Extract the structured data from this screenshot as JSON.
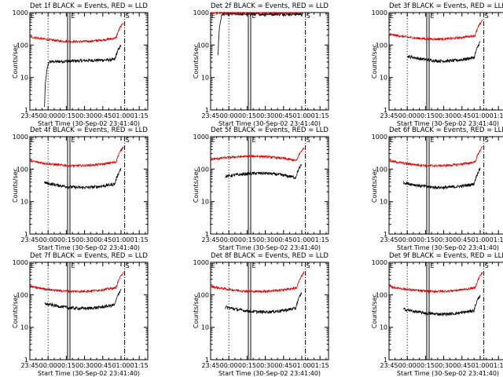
{
  "figure": {
    "background": "#ffffff",
    "colors": {
      "events": "#000000",
      "lld": "#dd0000",
      "axes": "#000000"
    }
  },
  "chart_data": [
    {
      "type": "line",
      "title": "Det 1f BLACK = Events, RED = LLD",
      "xlabel": "Start Time (30-Sep-02 23:41:40)",
      "ylabel": "Counts/sec",
      "xticks": [
        "23:45",
        "00:00",
        "00:15",
        "00:30",
        "00:45",
        "01:00",
        "01:15"
      ],
      "yticks": [
        "1",
        "10",
        "100",
        "1000"
      ],
      "yscale": "log",
      "ylim": [
        1,
        1000
      ],
      "markers": {
        "dotted": "00:00",
        "double": "00:17",
        "dashdot": "01:03",
        "letters": [
          "E",
          "S"
        ]
      },
      "series": [
        {
          "name": "Events",
          "color": "#000000",
          "start": "23:57",
          "end": "01:00",
          "shape": "onset",
          "level": 30
        },
        {
          "name": "LLD",
          "color": "#dd0000",
          "start": "23:45",
          "end": "01:02",
          "shape": "smile",
          "level": 150
        }
      ]
    },
    {
      "type": "line",
      "title": "Det 2f BLACK = Events, RED = LLD",
      "xlabel": "Start Time (30-Sep-02 23:41:40)",
      "ylabel": "Counts/sec",
      "xticks": [
        "23:45",
        "00:00",
        "00:15",
        "00:30",
        "00:45",
        "01:00",
        "01:15"
      ],
      "yticks": [
        "1",
        "10",
        "100",
        "1000"
      ],
      "yscale": "log",
      "ylim": [
        1,
        1000
      ],
      "markers": {
        "dotted": "00:00",
        "double": "00:17",
        "dashdot": "01:03",
        "letters": [
          "E",
          "S"
        ]
      },
      "series": [
        {
          "name": "Events",
          "color": "#000000",
          "start": "23:51",
          "end": "01:01",
          "shape": "flatonset",
          "level": 900
        },
        {
          "name": "LLD",
          "color": "#dd0000",
          "start": "23:45",
          "end": "01:02",
          "shape": "flat",
          "level": 1000
        }
      ]
    },
    {
      "type": "line",
      "title": "Det 3f BLACK = Events, RED = LLD",
      "xlabel": "Start Time (30-Sep-02 23:41:40)",
      "ylabel": "Counts/sec",
      "xticks": [
        "23:45",
        "00:00",
        "00:15",
        "00:30",
        "00:45",
        "01:00",
        "01:15"
      ],
      "yticks": [
        "1",
        "10",
        "100",
        "1000"
      ],
      "yscale": "log",
      "ylim": [
        1,
        1000
      ],
      "markers": {
        "dotted": "00:00",
        "double": "00:17",
        "dashdot": "01:03",
        "letters": [
          "E",
          "S"
        ]
      },
      "series": [
        {
          "name": "Events",
          "color": "#000000",
          "start": "00:00",
          "end": "01:00",
          "shape": "smile",
          "level": 38
        },
        {
          "name": "LLD",
          "color": "#dd0000",
          "start": "23:45",
          "end": "01:02",
          "shape": "smile",
          "level": 180
        }
      ]
    },
    {
      "type": "line",
      "title": "Det 4f BLACK = Events, RED = LLD",
      "xlabel": "Start Time (30-Sep-02 23:41:40)",
      "ylabel": "Counts/sec",
      "xticks": [
        "23:45",
        "00:00",
        "00:15",
        "00:30",
        "00:45",
        "01:00",
        "01:15"
      ],
      "yticks": [
        "1",
        "10",
        "100",
        "1000"
      ],
      "yscale": "log",
      "ylim": [
        1,
        1000
      ],
      "markers": {
        "dotted": "00:00",
        "double": "00:17",
        "dashdot": "01:03",
        "letters": [
          "E",
          "S"
        ]
      },
      "series": [
        {
          "name": "Events",
          "color": "#000000",
          "start": "23:57",
          "end": "01:00",
          "shape": "smile",
          "level": 32
        },
        {
          "name": "LLD",
          "color": "#dd0000",
          "start": "23:45",
          "end": "01:02",
          "shape": "smile",
          "level": 150
        }
      ]
    },
    {
      "type": "line",
      "title": "Det 5f BLACK = Events, RED = LLD",
      "xlabel": "Start Time (30-Sep-02 23:41:40)",
      "ylabel": "Counts/sec",
      "xticks": [
        "23:45",
        "00:00",
        "00:15",
        "00:30",
        "00:45",
        "01:00",
        "01:15"
      ],
      "yticks": [
        "1",
        "10",
        "100",
        "1000"
      ],
      "yscale": "log",
      "ylim": [
        1,
        1000
      ],
      "markers": {
        "dotted": "00:00",
        "double": "00:17",
        "dashdot": "01:03",
        "letters": [
          "E",
          "S"
        ]
      },
      "series": [
        {
          "name": "Events",
          "color": "#000000",
          "start": "23:57",
          "end": "01:00",
          "shape": "bump",
          "level": 60
        },
        {
          "name": "LLD",
          "color": "#dd0000",
          "start": "23:45",
          "end": "01:02",
          "shape": "bump",
          "level": 200
        }
      ]
    },
    {
      "type": "line",
      "title": "Det 6f BLACK = Events, RED = LLD",
      "xlabel": "Start Time (30-Sep-02 23:41:40)",
      "ylabel": "Counts/sec",
      "xticks": [
        "23:45",
        "00:00",
        "00:15",
        "00:30",
        "00:45",
        "01:00",
        "01:15"
      ],
      "yticks": [
        "1",
        "10",
        "100",
        "1000"
      ],
      "yscale": "log",
      "ylim": [
        1,
        1000
      ],
      "markers": {
        "dotted": "00:00",
        "double": "00:17",
        "dashdot": "01:03",
        "letters": [
          "E",
          "S"
        ]
      },
      "series": [
        {
          "name": "Events",
          "color": "#000000",
          "start": "23:57",
          "end": "01:00",
          "shape": "smile",
          "level": 32
        },
        {
          "name": "LLD",
          "color": "#dd0000",
          "start": "23:45",
          "end": "01:02",
          "shape": "smile",
          "level": 150
        }
      ]
    },
    {
      "type": "line",
      "title": "Det 7f BLACK = Events, RED = LLD",
      "xlabel": "Start Time (30-Sep-02 23:41:40)",
      "ylabel": "Counts/sec",
      "xticks": [
        "23:45",
        "00:00",
        "00:15",
        "00:30",
        "00:45",
        "01:00",
        "01:15"
      ],
      "yticks": [
        "1",
        "10",
        "100",
        "1000"
      ],
      "yscale": "log",
      "ylim": [
        1,
        1000
      ],
      "markers": {
        "dotted": "00:00",
        "double": "00:17",
        "dashdot": "01:03",
        "letters": [
          "E",
          "S"
        ]
      },
      "series": [
        {
          "name": "Events",
          "color": "#000000",
          "start": "23:57",
          "end": "01:00",
          "shape": "smile",
          "level": 45
        },
        {
          "name": "LLD",
          "color": "#dd0000",
          "start": "23:45",
          "end": "01:02",
          "shape": "smile",
          "level": 150
        }
      ]
    },
    {
      "type": "line",
      "title": "Det 8f BLACK = Events, RED = LLD",
      "xlabel": "Start Time (30-Sep-02 23:41:40)",
      "ylabel": "Counts/sec",
      "xticks": [
        "23:45",
        "00:00",
        "00:15",
        "00:30",
        "00:45",
        "01:00",
        "01:15"
      ],
      "yticks": [
        "1",
        "10",
        "100",
        "1000"
      ],
      "yscale": "log",
      "ylim": [
        1,
        1000
      ],
      "markers": {
        "dotted": "00:00",
        "double": "00:17",
        "dashdot": "01:03",
        "letters": [
          "E",
          "S"
        ]
      },
      "series": [
        {
          "name": "Events",
          "color": "#000000",
          "start": "23:57",
          "end": "01:00",
          "shape": "smile",
          "level": 35
        },
        {
          "name": "LLD",
          "color": "#dd0000",
          "start": "23:45",
          "end": "01:02",
          "shape": "smile",
          "level": 150
        }
      ]
    },
    {
      "type": "line",
      "title": "Det 9f BLACK = Events, RED = LLD",
      "xlabel": "Start Time (30-Sep-02 23:41:40)",
      "ylabel": "Counts/sec",
      "xticks": [
        "23:45",
        "00:00",
        "00:15",
        "00:30",
        "00:45",
        "01:00",
        "01:15"
      ],
      "yticks": [
        "1",
        "10",
        "100",
        "1000"
      ],
      "yscale": "log",
      "ylim": [
        1,
        1000
      ],
      "markers": {
        "dotted": "00:00",
        "double": "00:17",
        "dashdot": "01:03",
        "letters": [
          "E",
          "S"
        ]
      },
      "series": [
        {
          "name": "Events",
          "color": "#000000",
          "start": "23:57",
          "end": "01:00",
          "shape": "smile",
          "level": 30
        },
        {
          "name": "LLD",
          "color": "#dd0000",
          "start": "23:45",
          "end": "01:02",
          "shape": "smile",
          "level": 150
        }
      ]
    }
  ]
}
